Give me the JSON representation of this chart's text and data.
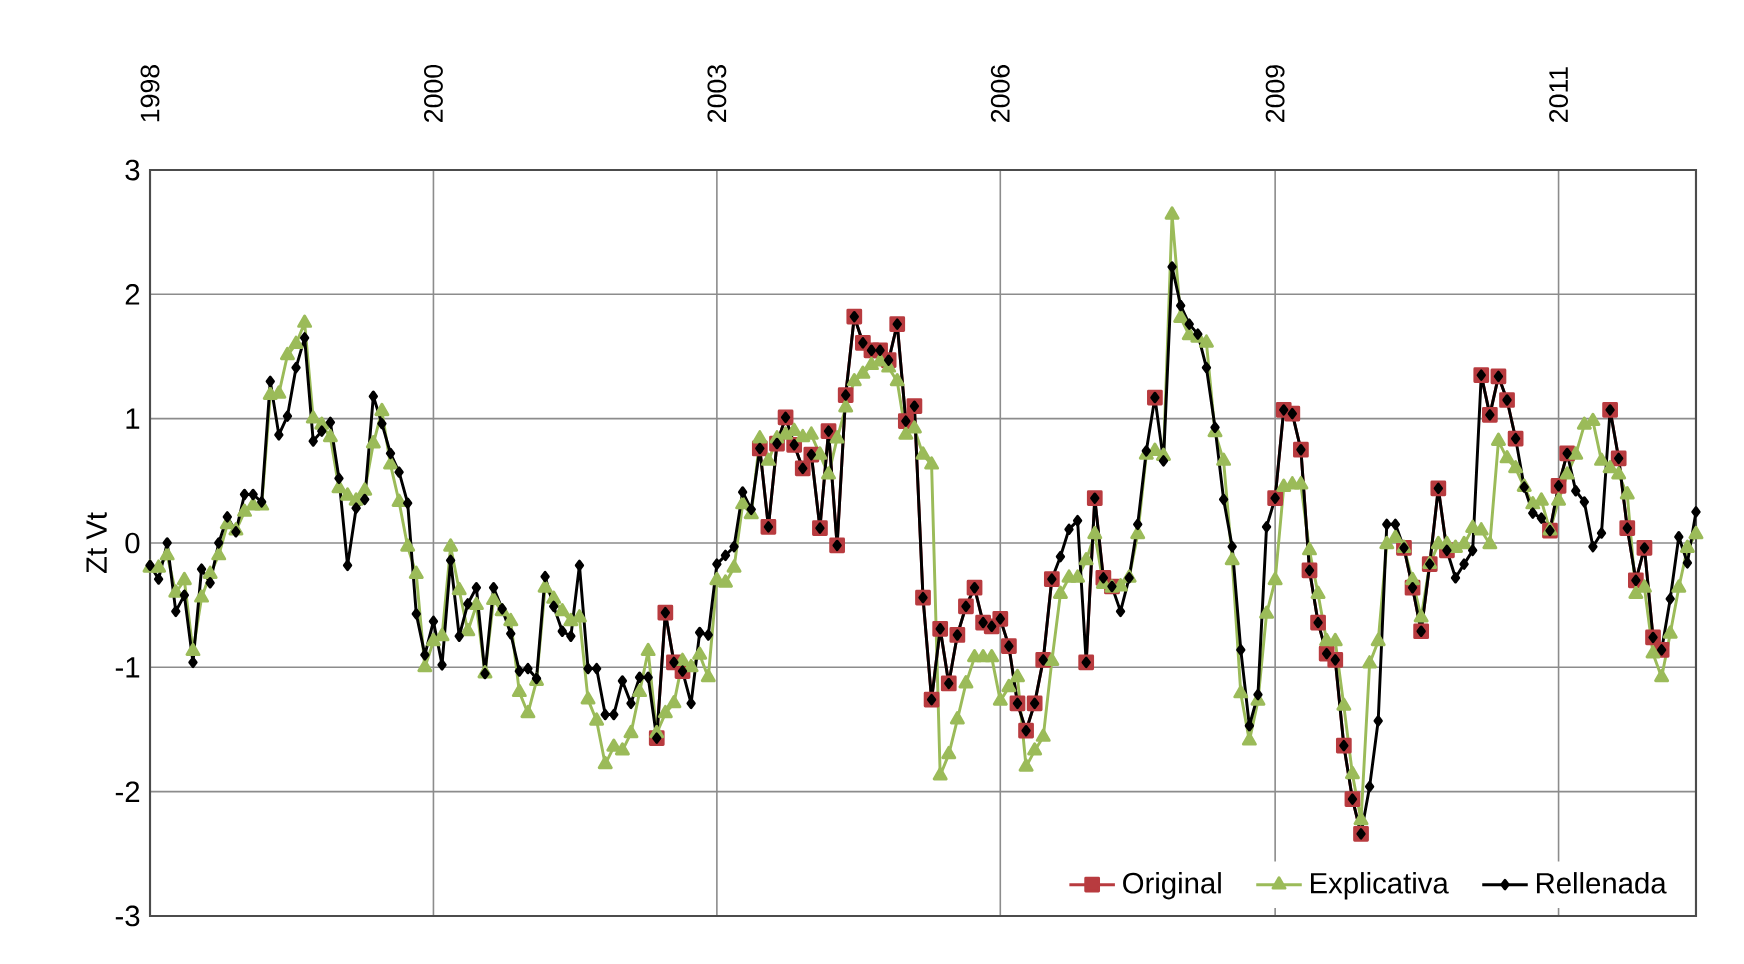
{
  "chart_data": {
    "type": "line",
    "ylabel": "Zt  Vt",
    "ylim": [
      -3,
      3
    ],
    "yticks": [
      -3,
      -2,
      -1,
      0,
      1,
      2,
      3
    ],
    "categories": [
      "1998",
      null,
      null,
      null,
      null,
      null,
      null,
      null,
      null,
      null,
      null,
      null,
      null,
      null,
      null,
      null,
      null,
      null,
      null,
      null,
      null,
      null,
      null,
      null,
      null,
      null,
      null,
      null,
      null,
      null,
      null,
      null,
      null,
      "2000",
      null,
      null,
      null,
      null,
      null,
      null,
      null,
      null,
      null,
      null,
      null,
      null,
      null,
      null,
      null,
      null,
      null,
      null,
      null,
      null,
      null,
      null,
      null,
      null,
      null,
      null,
      null,
      null,
      null,
      null,
      null,
      null,
      "2003",
      null,
      null,
      null,
      null,
      null,
      null,
      null,
      null,
      null,
      null,
      null,
      null,
      null,
      null,
      null,
      null,
      null,
      null,
      null,
      null,
      null,
      null,
      null,
      null,
      null,
      null,
      null,
      null,
      null,
      null,
      null,
      null,
      "2006",
      null,
      null,
      null,
      null,
      null,
      null,
      null,
      null,
      null,
      null,
      null,
      null,
      null,
      null,
      null,
      null,
      null,
      null,
      null,
      null,
      null,
      null,
      null,
      null,
      null,
      null,
      null,
      null,
      null,
      null,
      null,
      "2009",
      null,
      null,
      null,
      null,
      null,
      null,
      null,
      null,
      null,
      null,
      null,
      null,
      null,
      null,
      null,
      null,
      null,
      null,
      null,
      null,
      null,
      null,
      null,
      null,
      null,
      null,
      null,
      null,
      null,
      null,
      null,
      null,
      "2011",
      null,
      null,
      null,
      null,
      null,
      null,
      null,
      null,
      null,
      null,
      null,
      null,
      null,
      null,
      null,
      null
    ],
    "grid": true,
    "legend": "bottom right",
    "line_style": "solid",
    "series": [
      {
        "name": "Original",
        "color": "#b83b3f",
        "marker": "square",
        "values": [
          null,
          null,
          null,
          null,
          null,
          null,
          null,
          null,
          null,
          null,
          null,
          null,
          null,
          null,
          null,
          null,
          null,
          null,
          null,
          null,
          null,
          null,
          null,
          null,
          null,
          null,
          null,
          null,
          null,
          null,
          null,
          null,
          null,
          null,
          null,
          null,
          null,
          null,
          null,
          null,
          null,
          null,
          null,
          null,
          null,
          null,
          null,
          null,
          null,
          null,
          null,
          null,
          null,
          null,
          null,
          null,
          null,
          null,
          null,
          -1.57,
          -0.56,
          -0.96,
          -1.03,
          null,
          null,
          null,
          null,
          null,
          null,
          null,
          null,
          0.76,
          0.13,
          0.8,
          1.01,
          0.79,
          0.6,
          0.71,
          0.12,
          0.9,
          -0.02,
          1.19,
          1.82,
          1.61,
          1.55,
          1.55,
          1.47,
          1.76,
          0.98,
          1.1,
          -0.44,
          -1.26,
          -0.69,
          -1.13,
          -0.74,
          -0.51,
          -0.36,
          -0.64,
          -0.67,
          -0.61,
          -0.83,
          -1.29,
          -1.51,
          -1.29,
          -0.94,
          -0.29,
          null,
          null,
          null,
          -0.96,
          0.36,
          -0.28,
          -0.35,
          null,
          null,
          null,
          null,
          1.17,
          null,
          null,
          null,
          null,
          null,
          null,
          null,
          null,
          null,
          null,
          null,
          null,
          null,
          0.36,
          1.07,
          1.04,
          0.75,
          -0.22,
          -0.64,
          -0.89,
          -0.94,
          -1.63,
          -2.06,
          -2.34,
          null,
          null,
          null,
          null,
          -0.04,
          -0.36,
          -0.71,
          -0.17,
          0.44,
          -0.06,
          null,
          null,
          null,
          1.35,
          1.03,
          1.34,
          1.15,
          0.84,
          null,
          null,
          null,
          0.1,
          0.46,
          0.72,
          null,
          null,
          null,
          null,
          1.07,
          0.68,
          0.12,
          -0.3,
          -0.04,
          -0.76,
          -0.86,
          null,
          null,
          null,
          null
        ]
      },
      {
        "name": "Explicativa",
        "color": "#9bbb59",
        "marker": "triangle",
        "values": [
          -0.2,
          -0.2,
          -0.1,
          -0.4,
          -0.3,
          -0.87,
          -0.44,
          -0.25,
          -0.1,
          0.15,
          0.1,
          0.25,
          0.3,
          0.3,
          1.19,
          1.2,
          1.51,
          1.6,
          1.77,
          1.0,
          0.95,
          0.85,
          0.44,
          0.38,
          0.34,
          0.42,
          0.8,
          1.06,
          0.63,
          0.33,
          -0.03,
          -0.25,
          -1.0,
          -0.79,
          -0.75,
          -0.03,
          -0.38,
          -0.71,
          -0.5,
          -1.05,
          -0.46,
          -0.55,
          -0.63,
          -1.2,
          -1.37,
          -1.11,
          -0.36,
          -0.45,
          -0.55,
          -0.63,
          -0.6,
          -1.26,
          -1.43,
          -1.78,
          -1.64,
          -1.67,
          -1.53,
          -1.2,
          -0.87,
          -1.53,
          -1.37,
          -1.29,
          -0.95,
          -1.0,
          -0.9,
          -1.08,
          -0.3,
          -0.32,
          -0.2,
          0.31,
          0.23,
          0.84,
          0.66,
          0.84,
          0.87,
          0.9,
          0.85,
          0.87,
          0.71,
          0.55,
          0.84,
          1.09,
          1.3,
          1.36,
          1.43,
          1.46,
          1.41,
          1.3,
          0.87,
          0.92,
          0.71,
          0.63,
          -1.87,
          -1.7,
          -1.42,
          -1.13,
          -0.92,
          -0.92,
          -0.92,
          -1.27,
          -1.16,
          -1.08,
          -1.8,
          -1.67,
          -1.56,
          -0.95,
          -0.41,
          -0.28,
          -0.28,
          -0.14,
          0.07,
          -0.33,
          -0.36,
          -0.35,
          -0.28,
          0.07,
          0.71,
          0.74,
          0.7,
          2.64,
          1.81,
          1.67,
          1.65,
          1.61,
          0.89,
          0.66,
          -0.14,
          -1.21,
          -1.59,
          -1.27,
          -0.57,
          -0.3,
          0.45,
          0.47,
          0.47,
          -0.06,
          -0.41,
          -0.79,
          -0.79,
          -1.31,
          -1.86,
          -2.23,
          -0.97,
          -0.79,
          -0.01,
          0.04,
          -0.04,
          -0.3,
          -0.6,
          -0.17,
          -0.01,
          -0.01,
          -0.04,
          -0.01,
          0.12,
          0.1,
          -0.01,
          0.82,
          0.68,
          0.6,
          0.45,
          0.31,
          0.34,
          0.1,
          0.34,
          0.55,
          0.71,
          0.95,
          0.98,
          0.66,
          0.6,
          0.55,
          0.39,
          -0.41,
          -0.36,
          -0.89,
          -1.08,
          -0.73,
          -0.36,
          -0.04,
          0.07
        ]
      },
      {
        "name": "Rellenada",
        "color": "#000000",
        "marker": "diamond",
        "values": [
          -0.18,
          -0.29,
          0.0,
          -0.55,
          -0.42,
          -0.96,
          -0.21,
          -0.32,
          0.0,
          0.21,
          0.09,
          0.39,
          0.39,
          0.33,
          1.3,
          0.87,
          1.02,
          1.41,
          1.65,
          0.82,
          0.9,
          0.97,
          0.52,
          -0.18,
          0.28,
          0.35,
          1.18,
          0.96,
          0.72,
          0.57,
          0.32,
          -0.57,
          -0.9,
          -0.63,
          -0.98,
          -0.14,
          -0.75,
          -0.49,
          -0.36,
          -1.05,
          -0.36,
          -0.53,
          -0.73,
          -1.03,
          -1.01,
          -1.09,
          -0.27,
          -0.51,
          -0.71,
          -0.75,
          -0.18,
          -1.01,
          -1.01,
          -1.38,
          -1.38,
          -1.11,
          -1.29,
          -1.08,
          -1.08,
          -1.57,
          -0.56,
          -0.96,
          -1.03,
          -1.29,
          -0.72,
          -0.74,
          -0.17,
          -0.1,
          -0.03,
          0.41,
          0.27,
          0.76,
          0.13,
          0.8,
          1.01,
          0.79,
          0.6,
          0.71,
          0.12,
          0.9,
          -0.02,
          1.19,
          1.82,
          1.61,
          1.55,
          1.55,
          1.47,
          1.76,
          0.98,
          1.1,
          -0.44,
          -1.26,
          -0.69,
          -1.13,
          -0.74,
          -0.51,
          -0.36,
          -0.64,
          -0.67,
          -0.61,
          -0.83,
          -1.29,
          -1.51,
          -1.29,
          -0.94,
          -0.29,
          -0.11,
          0.11,
          0.18,
          -0.96,
          0.36,
          -0.28,
          -0.35,
          -0.55,
          -0.28,
          0.15,
          0.74,
          1.17,
          0.66,
          2.22,
          1.91,
          1.76,
          1.68,
          1.41,
          0.93,
          0.35,
          -0.03,
          -0.86,
          -1.47,
          -1.22,
          0.13,
          0.36,
          1.07,
          1.04,
          0.75,
          -0.22,
          -0.64,
          -0.89,
          -0.94,
          -1.63,
          -2.06,
          -2.34,
          -1.96,
          -1.43,
          0.15,
          0.15,
          -0.04,
          -0.36,
          -0.71,
          -0.17,
          0.44,
          -0.06,
          -0.28,
          -0.17,
          -0.06,
          1.35,
          1.03,
          1.34,
          1.15,
          0.84,
          0.45,
          0.24,
          0.2,
          0.1,
          0.46,
          0.72,
          0.42,
          0.33,
          -0.03,
          0.08,
          1.07,
          0.68,
          0.12,
          -0.3,
          -0.04,
          -0.76,
          -0.86,
          -0.45,
          0.05,
          -0.16,
          0.25
        ]
      }
    ]
  }
}
